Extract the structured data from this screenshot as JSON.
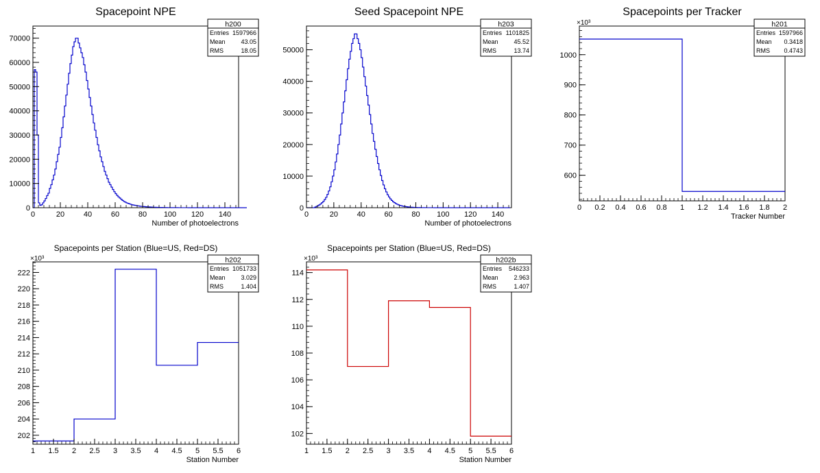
{
  "colors": {
    "blue": "#0000cc",
    "red": "#cc0000",
    "axis": "#000000"
  },
  "chart_data": [
    {
      "type": "bar",
      "id": "h200",
      "title": "Spacepoint NPE",
      "xlabel": "Number of photoelectrons",
      "ylabel": "",
      "xlim": [
        0,
        150
      ],
      "ylim": [
        0,
        75000
      ],
      "xticks": [
        0,
        20,
        40,
        60,
        80,
        100,
        120,
        140
      ],
      "yticks": [
        0,
        10000,
        20000,
        30000,
        40000,
        50000,
        60000,
        70000
      ],
      "y_exponent": "",
      "bin_width": 1,
      "color": "blue",
      "stats": {
        "name": "h200",
        "rows": [
          [
            "Entries",
            "1597966"
          ],
          [
            "Mean",
            "43.05"
          ],
          [
            "RMS",
            "18.05"
          ]
        ]
      },
      "values": [
        0,
        57000,
        56000,
        30000,
        2000,
        1000,
        1200,
        2000,
        2800,
        3800,
        5000,
        6000,
        8000,
        9500,
        11500,
        13500,
        16000,
        19000,
        22000,
        25000,
        29000,
        33000,
        37500,
        42000,
        46500,
        51000,
        55500,
        59500,
        63000,
        66500,
        68500,
        70000,
        70000,
        68000,
        66000,
        64000,
        62000,
        59000,
        56000,
        52500,
        49000,
        45500,
        42000,
        38500,
        35000,
        32000,
        29000,
        26000,
        23500,
        21000,
        19000,
        17000,
        15000,
        13500,
        12000,
        10500,
        9500,
        8500,
        7500,
        6600,
        5800,
        5100,
        4500,
        4000,
        3500,
        3000,
        2600,
        2300,
        2000,
        1800,
        1600,
        1400,
        1200,
        1100,
        1000,
        900,
        800,
        700,
        600,
        550,
        500,
        450,
        400,
        360,
        320,
        290,
        260,
        230,
        200,
        180,
        160,
        140,
        120,
        110,
        100,
        90,
        80,
        70,
        60,
        55,
        50,
        45,
        40,
        35,
        30,
        27,
        24,
        21,
        18,
        16,
        14,
        12,
        10,
        9,
        8,
        7,
        6,
        5,
        4,
        3,
        3,
        2,
        2,
        2,
        1,
        1,
        1,
        1,
        1,
        1,
        1,
        1,
        1,
        1,
        0,
        0,
        0,
        0,
        0,
        0,
        0,
        0,
        0,
        0,
        0,
        0,
        0,
        0,
        0,
        0,
        0,
        0,
        0,
        0,
        0,
        0
      ]
    },
    {
      "type": "bar",
      "id": "h203",
      "title": "Seed Spacepoint NPE",
      "xlabel": "Number of photoelectrons",
      "ylabel": "",
      "xlim": [
        0,
        150
      ],
      "ylim": [
        0,
        57500
      ],
      "xticks": [
        0,
        20,
        40,
        60,
        80,
        100,
        120,
        140
      ],
      "yticks": [
        0,
        10000,
        20000,
        30000,
        40000,
        50000
      ],
      "y_exponent": "",
      "bin_width": 1,
      "color": "blue",
      "stats": {
        "name": "h203",
        "rows": [
          [
            "Entries",
            "1101825"
          ],
          [
            "Mean",
            "45.52"
          ],
          [
            "RMS",
            "13.74"
          ]
        ]
      },
      "values": [
        0,
        0,
        0,
        0,
        0,
        0,
        200,
        400,
        600,
        900,
        1200,
        1600,
        2000,
        2600,
        3300,
        4200,
        5300,
        6600,
        8200,
        10000,
        12000,
        14500,
        17000,
        20000,
        23000,
        26500,
        30000,
        33500,
        37000,
        40500,
        44000,
        47000,
        49500,
        52000,
        53500,
        55000,
        55000,
        53500,
        52000,
        50000,
        47500,
        44500,
        41500,
        38500,
        35500,
        32500,
        29500,
        26500,
        23500,
        21000,
        18500,
        16200,
        14000,
        12000,
        10200,
        8600,
        7200,
        6000,
        5000,
        4100,
        3400,
        2800,
        2300,
        1900,
        1600,
        1300,
        1100,
        900,
        750,
        620,
        520,
        430,
        360,
        300,
        250,
        210,
        175,
        145,
        120,
        100,
        84,
        70,
        58,
        48,
        40,
        33,
        27,
        22,
        18,
        15,
        12,
        10,
        8,
        7,
        6,
        5,
        4,
        3,
        3,
        2,
        2,
        2,
        1,
        1,
        1,
        1,
        1,
        1,
        1,
        1,
        1,
        1,
        1,
        1,
        0,
        0,
        0,
        0,
        0,
        0,
        0,
        0,
        0,
        0,
        0,
        0,
        0,
        0,
        0,
        0,
        0,
        0,
        0,
        0,
        0,
        0,
        0,
        0,
        0,
        0,
        0,
        0,
        0,
        0,
        0,
        0,
        0,
        0,
        0
      ]
    },
    {
      "type": "bar",
      "id": "h201",
      "title": "Spacepoints per Tracker",
      "xlabel": "Tracker Number",
      "ylabel": "",
      "xlim": [
        0,
        2
      ],
      "ylim": [
        515,
        1095
      ],
      "xticks": [
        0,
        0.2,
        0.4,
        0.6,
        0.8,
        1,
        1.2,
        1.4,
        1.6,
        1.8,
        2
      ],
      "yticks": [
        600,
        700,
        800,
        900,
        1000
      ],
      "y_exponent": "×10³",
      "bin_width": 1,
      "bin_start": 0,
      "color": "blue",
      "stats": {
        "name": "h201",
        "rows": [
          [
            "Entries",
            "1597966"
          ],
          [
            "Mean",
            "0.3418"
          ],
          [
            "RMS",
            "0.4743"
          ]
        ]
      },
      "values": [
        1051.733,
        546.233
      ]
    },
    {
      "type": "bar",
      "id": "h202",
      "title": "Spacepoints per Station (Blue=US, Red=DS)",
      "xlabel": "Station Number",
      "ylabel": "",
      "xlim": [
        1,
        6
      ],
      "ylim": [
        200.9,
        223.3
      ],
      "xticks": [
        1,
        1.5,
        2,
        2.5,
        3,
        3.5,
        4,
        4.5,
        5,
        5.5,
        6
      ],
      "yticks": [
        202,
        204,
        206,
        208,
        210,
        212,
        214,
        216,
        218,
        220,
        222
      ],
      "y_exponent": "×10³",
      "bin_width": 1,
      "bin_start": 1,
      "color": "blue",
      "stats": {
        "name": "h202",
        "rows": [
          [
            "Entries",
            "1051733"
          ],
          [
            "Mean",
            "3.029"
          ],
          [
            "RMS",
            "1.404"
          ]
        ]
      },
      "values": [
        201.3,
        204.0,
        222.4,
        210.6,
        213.4
      ]
    },
    {
      "type": "bar",
      "id": "h202b",
      "title": "Spacepoints per Station (Blue=US, Red=DS)",
      "xlabel": "Station Number",
      "ylabel": "",
      "xlim": [
        1,
        6
      ],
      "ylim": [
        101.2,
        114.8
      ],
      "xticks": [
        1,
        1.5,
        2,
        2.5,
        3,
        3.5,
        4,
        4.5,
        5,
        5.5,
        6
      ],
      "yticks": [
        102,
        104,
        106,
        108,
        110,
        112,
        114
      ],
      "y_exponent": "×10³",
      "bin_width": 1,
      "bin_start": 1,
      "color": "red",
      "stats": {
        "name": "h202b",
        "rows": [
          [
            "Entries",
            "546233"
          ],
          [
            "Mean",
            "2.963"
          ],
          [
            "RMS",
            "1.407"
          ]
        ]
      },
      "values": [
        114.2,
        107.0,
        111.9,
        111.4,
        101.8
      ]
    }
  ]
}
